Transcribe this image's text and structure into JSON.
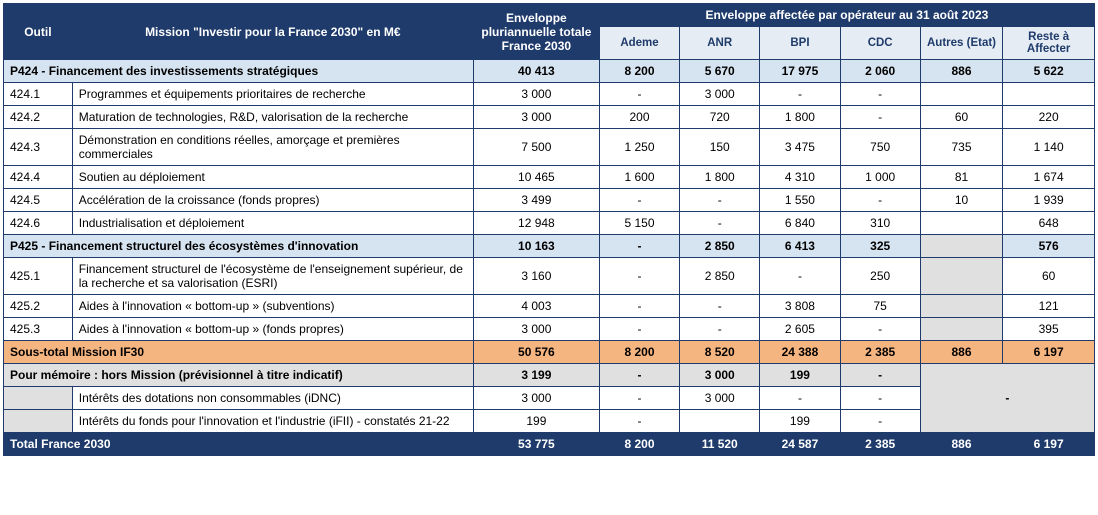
{
  "header": {
    "outil": "Outil",
    "mission": "Mission \"Investir pour la France 2030\" en M€",
    "enveloppe_totale": "Enveloppe pluriannuelle totale France 2030",
    "enveloppe_affectee": "Enveloppe affectée par opérateur au  31 août  2023",
    "cols": {
      "ademe": "Ademe",
      "anr": "ANR",
      "bpi": "BPI",
      "cdc": "CDC",
      "autres": "Autres (Etat)",
      "reste": "Reste à Affecter"
    }
  },
  "p424": {
    "title": "P424 - Financement des investissements stratégiques",
    "total": "40 413",
    "ademe": "8 200",
    "anr": "5 670",
    "bpi": "17 975",
    "cdc": "2 060",
    "autres": "886",
    "reste": "5 622",
    "rows": [
      {
        "code": "424.1",
        "label": "Programmes et équipements prioritaires de recherche",
        "total": "3 000",
        "ademe": "-",
        "anr": "3 000",
        "bpi": "-",
        "cdc": "-",
        "autres": "",
        "reste": ""
      },
      {
        "code": "424.2",
        "label": " Maturation de technologies, R&D, valorisation de la recherche",
        "total": "3 000",
        "ademe": "200",
        "anr": "720",
        "bpi": "1 800",
        "cdc": "-",
        "autres": "60",
        "reste": "220"
      },
      {
        "code": "424.3",
        "label": "Démonstration en conditions réelles, amorçage et premières commerciales",
        "total": "7 500",
        "ademe": "1 250",
        "anr": "150",
        "bpi": "3 475",
        "cdc": "750",
        "autres": "735",
        "reste": "1 140"
      },
      {
        "code": "424.4",
        "label": "Soutien au déploiement",
        "total": "10 465",
        "ademe": "1 600",
        "anr": "1 800",
        "bpi": "4 310",
        "cdc": "1 000",
        "autres": "81",
        "reste": "1 674"
      },
      {
        "code": "424.5",
        "label": "Accélération de la croissance (fonds propres)",
        "total": "3 499",
        "ademe": "-",
        "anr": "-",
        "bpi": "1 550",
        "cdc": "-",
        "autres": "10",
        "reste": "1 939"
      },
      {
        "code": "424.6",
        "label": "Industrialisation et déploiement",
        "total": "12 948",
        "ademe": "5 150",
        "anr": "-",
        "bpi": "6 840",
        "cdc": "310",
        "autres": "",
        "reste": "648"
      }
    ]
  },
  "p425": {
    "title": "P425 - Financement structurel des écosystèmes d'innovation",
    "total": "10 163",
    "ademe": "-",
    "anr": "2 850",
    "bpi": "6 413",
    "cdc": "325",
    "autres": "",
    "reste": "576",
    "rows": [
      {
        "code": "425.1",
        "label": "Financement structurel de l'écosystème de l'enseignement supérieur, de la recherche et sa valorisation (ESRI)",
        "total": "3 160",
        "ademe": "-",
        "anr": "2 850",
        "bpi": "-",
        "cdc": "250",
        "autres_grey": true,
        "autres": "",
        "reste": "60"
      },
      {
        "code": "425.2",
        "label": "Aides à l'innovation « bottom-up » (subventions)",
        "total": "4 003",
        "ademe": "-",
        "anr": "-",
        "bpi": "3 808",
        "cdc": "75",
        "autres_grey": true,
        "autres": "",
        "reste": "121"
      },
      {
        "code": "425.3",
        "label": "Aides à l'innovation « bottom-up » (fonds propres)",
        "total": "3 000",
        "ademe": "-",
        "anr": "-",
        "bpi": "2 605",
        "cdc": "-",
        "autres_grey": true,
        "autres": "",
        "reste": "395"
      }
    ]
  },
  "subtotal": {
    "title": "Sous-total Mission IF30",
    "total": "50 576",
    "ademe": "8 200",
    "anr": "8 520",
    "bpi": "24 388",
    "cdc": "2 385",
    "autres": "886",
    "reste": "6 197"
  },
  "memoire": {
    "title": "Pour mémoire : hors Mission (prévisionnel à titre indicatif)",
    "total": "3 199",
    "ademe": "-",
    "anr": "3 000",
    "bpi": "199",
    "cdc": "-",
    "rows": [
      {
        "code": "",
        "label": "Intérêts des dotations non consommables (iDNC)",
        "total": "3 000",
        "ademe": "-",
        "anr": "3 000",
        "bpi": "-",
        "cdc": "-"
      },
      {
        "code": "",
        "label": "Intérêts du fonds pour l'innovation et l'industrie (iFII) - constatés 21-22",
        "total": "199",
        "ademe": "-",
        "anr": "",
        "bpi": "199",
        "cdc": "-"
      }
    ],
    "merged_dash": "-"
  },
  "grand_total": {
    "title": "Total France 2030",
    "total": "53 775",
    "ademe": "8 200",
    "anr": "11 520",
    "bpi": "24 587",
    "cdc": "2 385",
    "autres": "886",
    "reste": "6 197"
  }
}
